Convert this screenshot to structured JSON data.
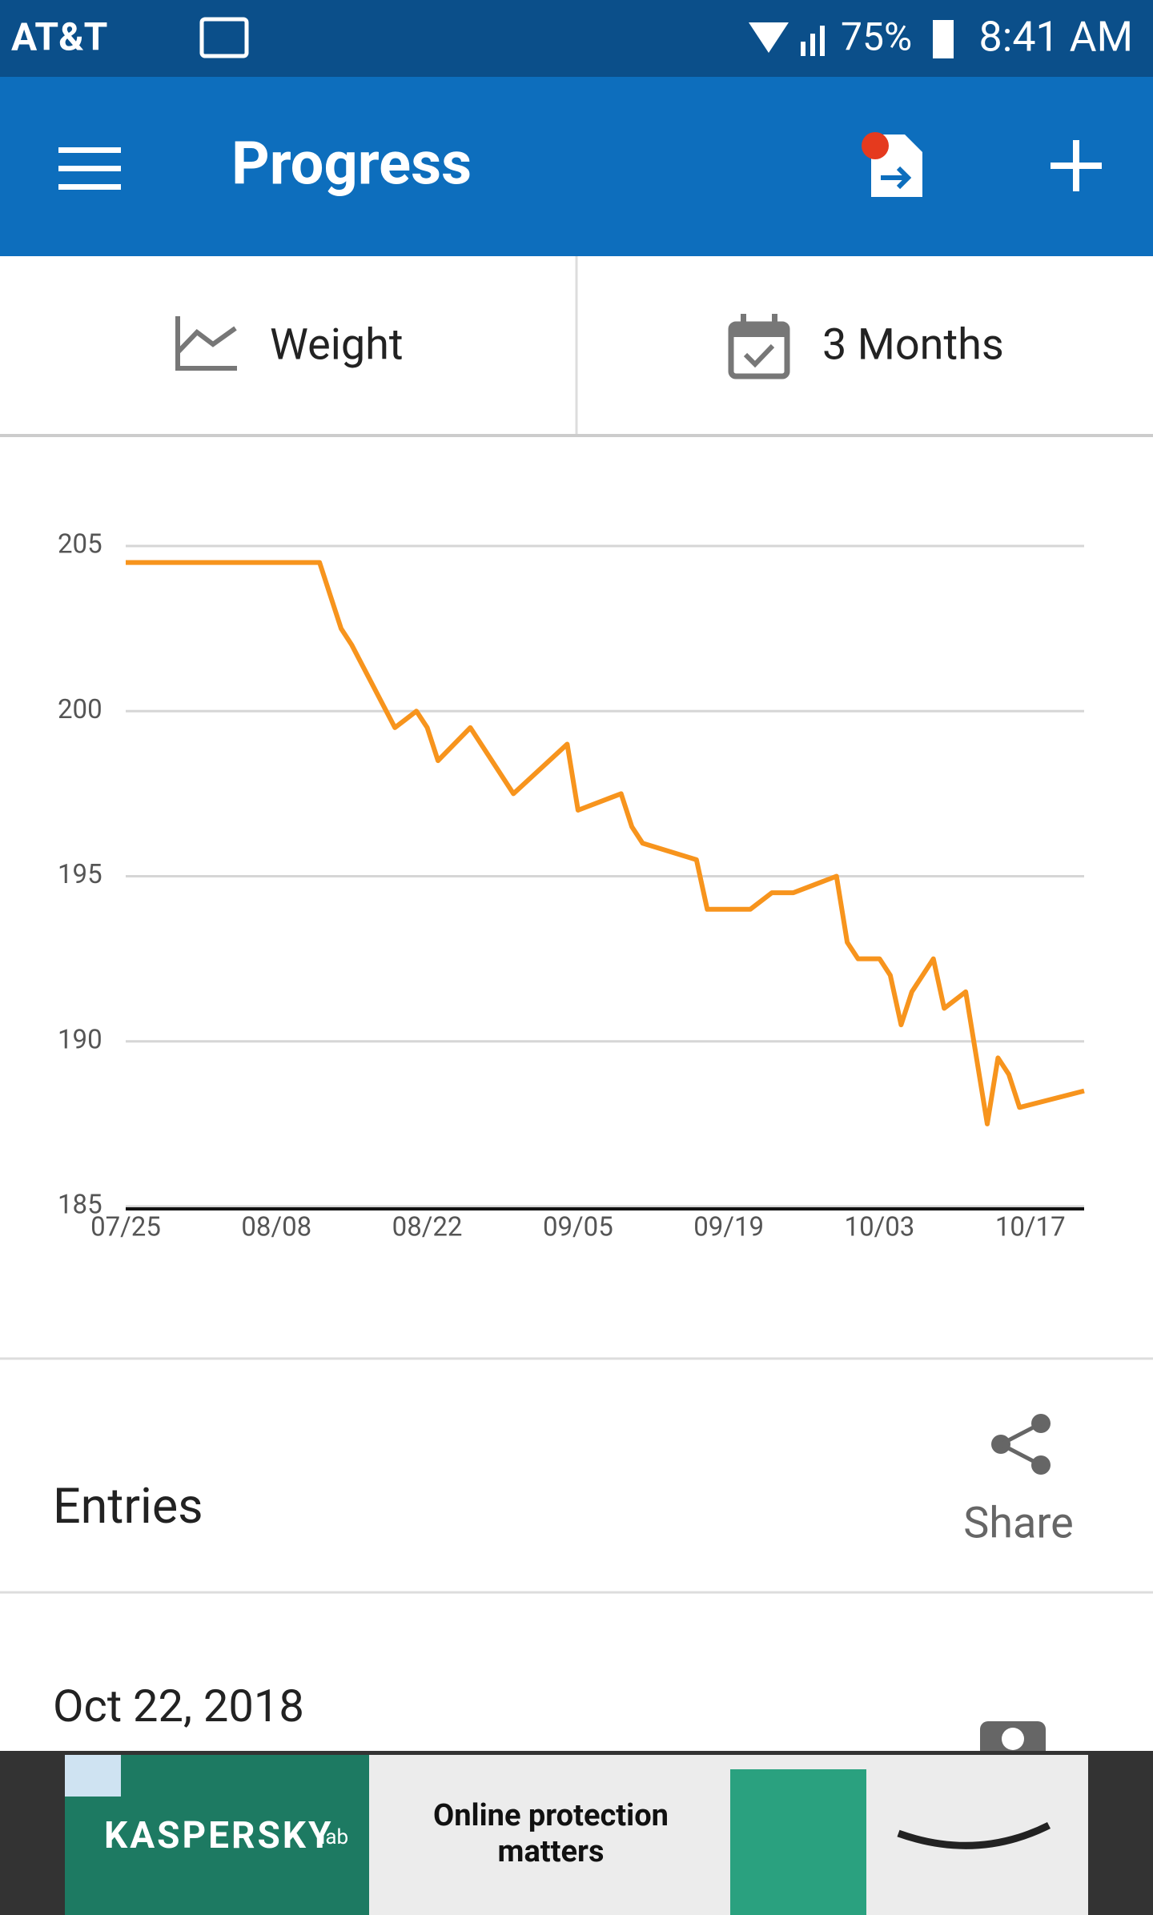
{
  "status_bar": {
    "carrier": "AT&T",
    "battery": "75%",
    "time": "8:41 AM"
  },
  "app_bar": {
    "title": "Progress"
  },
  "tabs": {
    "metric": "Weight",
    "range": "3 Months"
  },
  "chart_data": {
    "type": "line",
    "x": [
      "07/25",
      "08/12",
      "08/14",
      "08/15",
      "08/19",
      "08/21",
      "08/22",
      "08/23",
      "08/26",
      "08/30",
      "09/04",
      "09/05",
      "09/09",
      "09/10",
      "09/11",
      "09/16",
      "09/17",
      "09/21",
      "09/23",
      "09/25",
      "09/29",
      "09/30",
      "10/01",
      "10/03",
      "10/04",
      "10/05",
      "10/06",
      "10/08",
      "10/09",
      "10/11",
      "10/13",
      "10/14",
      "10/15",
      "10/16",
      "10/22"
    ],
    "series": [
      {
        "color": "#f7941d",
        "values": [
          204.5,
          204.5,
          202.5,
          202,
          199.5,
          200,
          199.5,
          198.5,
          199.5,
          197.5,
          199,
          197,
          197.5,
          196.5,
          196,
          195.5,
          194,
          194,
          194.5,
          194.5,
          195,
          193,
          192.5,
          192.5,
          192,
          190.5,
          191.5,
          192.5,
          191,
          191.5,
          187.5,
          189.5,
          189,
          188,
          188.5
        ]
      }
    ],
    "xlim": [
      "07/25",
      "10/22"
    ],
    "xticks": [
      "07/25",
      "08/08",
      "08/22",
      "09/05",
      "09/19",
      "10/03",
      "10/17"
    ],
    "ylim": [
      185,
      205
    ],
    "yticks": [
      185,
      190,
      195,
      200,
      205
    ],
    "grid": true
  },
  "entries": {
    "title": "Entries",
    "share": "Share",
    "first_date": "Oct 22, 2018"
  },
  "ad": {
    "brand": "KASPERSKY",
    "brand_suffix": "lab",
    "text_line1": "Online protection",
    "text_line2": "matters"
  }
}
